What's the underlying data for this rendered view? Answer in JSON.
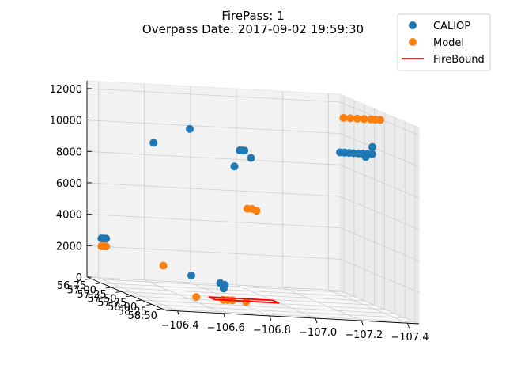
{
  "chart_data": {
    "type": "scatter",
    "projection": "3d",
    "title_line1": "FirePass: 1",
    "title_line2": "Overpass Date: 2017-09-02 19:59:30",
    "legend_position": "top-right",
    "grid": true,
    "xlim": [
      -106.35,
      -107.45
    ],
    "ylim": [
      56.65,
      58.6
    ],
    "zlim": [
      0,
      12500
    ],
    "x_ticks": [
      -106.4,
      -106.6,
      -106.8,
      -107.0,
      -107.2,
      -107.4
    ],
    "x_tick_labels": [
      "−106.4",
      "−106.6",
      "−106.8",
      "−107.0",
      "−107.2",
      "−107.4"
    ],
    "y_ticks": [
      56.75,
      57.0,
      57.25,
      57.5,
      57.75,
      58.0,
      58.25,
      58.5
    ],
    "y_tick_labels": [
      "56.75",
      "57.00",
      "57.25",
      "57.50",
      "57.75",
      "58.00",
      "58.25",
      "58.50"
    ],
    "z_ticks": [
      0,
      2000,
      4000,
      6000,
      8000,
      10000,
      12000
    ],
    "z_tick_labels": [
      "0",
      "2000",
      "4000",
      "6000",
      "8000",
      "10000",
      "12000"
    ],
    "series": [
      {
        "name": "CALIOP",
        "color": "#1f77b4",
        "marker": "circle",
        "points": [
          {
            "x": -106.36,
            "y": 56.95,
            "z": 2800
          },
          {
            "x": -106.37,
            "y": 56.95,
            "z": 2800
          },
          {
            "x": -106.38,
            "y": 56.95,
            "z": 2800
          },
          {
            "x": -106.56,
            "y": 57.1,
            "z": 9200
          },
          {
            "x": -106.7,
            "y": 57.2,
            "z": 10300
          },
          {
            "x": -106.61,
            "y": 57.75,
            "z": 1500
          },
          {
            "x": -106.7,
            "y": 57.95,
            "z": 1300
          },
          {
            "x": -106.72,
            "y": 57.95,
            "z": 1200
          },
          {
            "x": -106.71,
            "y": 57.98,
            "z": 1000
          },
          {
            "x": -106.85,
            "y": 57.45,
            "z": 8300
          },
          {
            "x": -106.9,
            "y": 57.3,
            "z": 9200
          },
          {
            "x": -106.91,
            "y": 57.3,
            "z": 9200
          },
          {
            "x": -106.92,
            "y": 57.3,
            "z": 9200
          },
          {
            "x": -106.94,
            "y": 57.35,
            "z": 8800
          },
          {
            "x": -107.3,
            "y": 57.5,
            "z": 9600
          },
          {
            "x": -107.32,
            "y": 57.5,
            "z": 9600
          },
          {
            "x": -107.34,
            "y": 57.5,
            "z": 9600
          },
          {
            "x": -107.36,
            "y": 57.5,
            "z": 9600
          },
          {
            "x": -107.38,
            "y": 57.5,
            "z": 9600
          },
          {
            "x": -107.4,
            "y": 57.5,
            "z": 9600
          },
          {
            "x": -107.42,
            "y": 57.5,
            "z": 9600
          },
          {
            "x": -107.44,
            "y": 57.5,
            "z": 9600
          },
          {
            "x": -107.45,
            "y": 57.45,
            "z": 10000
          },
          {
            "x": -107.43,
            "y": 57.4,
            "z": 9300
          }
        ]
      },
      {
        "name": "Model",
        "color": "#ff7f0e",
        "marker": "circle",
        "points": [
          {
            "x": -106.36,
            "y": 56.95,
            "z": 2300
          },
          {
            "x": -106.37,
            "y": 56.95,
            "z": 2300
          },
          {
            "x": -106.38,
            "y": 56.95,
            "z": 2300
          },
          {
            "x": -106.55,
            "y": 57.4,
            "z": 1700
          },
          {
            "x": -106.64,
            "y": 57.7,
            "z": 100
          },
          {
            "x": -106.74,
            "y": 57.8,
            "z": 100
          },
          {
            "x": -106.76,
            "y": 57.8,
            "z": 100
          },
          {
            "x": -106.78,
            "y": 57.8,
            "z": 100
          },
          {
            "x": -106.83,
            "y": 57.85,
            "z": 100
          },
          {
            "x": -106.88,
            "y": 57.6,
            "z": 5800
          },
          {
            "x": -106.9,
            "y": 57.6,
            "z": 5800
          },
          {
            "x": -106.92,
            "y": 57.6,
            "z": 5700
          },
          {
            "x": -107.28,
            "y": 57.7,
            "z": 12000
          },
          {
            "x": -107.31,
            "y": 57.7,
            "z": 12000
          },
          {
            "x": -107.34,
            "y": 57.7,
            "z": 12000
          },
          {
            "x": -107.37,
            "y": 57.7,
            "z": 12000
          },
          {
            "x": -107.4,
            "y": 57.7,
            "z": 12000
          },
          {
            "x": -107.42,
            "y": 57.7,
            "z": 12000
          },
          {
            "x": -107.44,
            "y": 57.7,
            "z": 12000
          }
        ]
      },
      {
        "name": "FireBound",
        "color": "#ff0000",
        "type": "line",
        "closed": true,
        "points": [
          {
            "x": -106.72,
            "y": 57.55,
            "z": 0
          },
          {
            "x": -107.0,
            "y": 57.55,
            "z": 0
          },
          {
            "x": -107.0,
            "y": 57.7,
            "z": 0
          },
          {
            "x": -106.72,
            "y": 57.7,
            "z": 0
          }
        ]
      }
    ]
  }
}
